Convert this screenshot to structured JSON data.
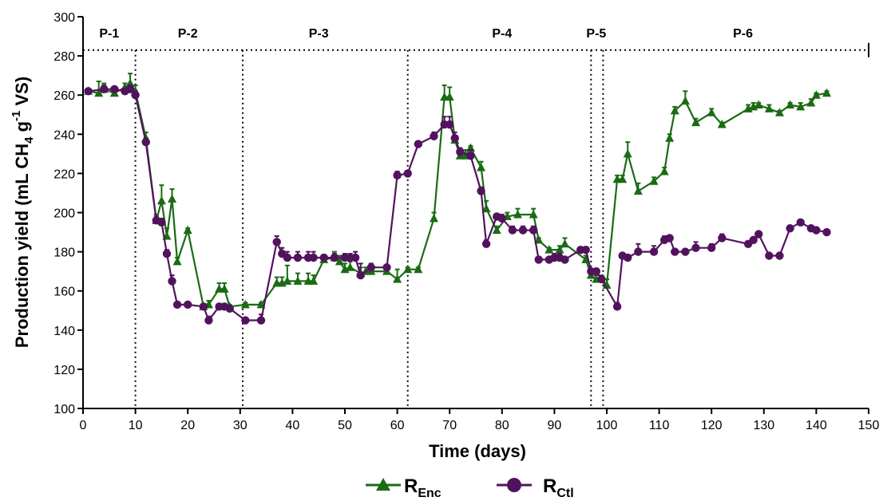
{
  "chart_data": {
    "type": "line",
    "title": "",
    "xlabel": "Time (days)",
    "ylabel": {
      "main": "Production yield (mL CH",
      "sub": "4",
      "mid": " g",
      "sup": "-1",
      "end": " VS)"
    },
    "xlim": [
      0,
      150
    ],
    "ylim": [
      100,
      300
    ],
    "xticks": [
      0,
      10,
      20,
      30,
      40,
      50,
      60,
      70,
      80,
      90,
      100,
      110,
      120,
      130,
      140,
      150
    ],
    "yticks": [
      100,
      120,
      140,
      160,
      180,
      200,
      220,
      240,
      260,
      280,
      300
    ],
    "grid": false,
    "legend_position": "bottom",
    "phases": {
      "boundaries": [
        10,
        30.5,
        62,
        97,
        99.3
      ],
      "line_y": 283,
      "labels": [
        {
          "text": "P-1",
          "x": 5
        },
        {
          "text": "P-2",
          "x": 20
        },
        {
          "text": "P-3",
          "x": 45
        },
        {
          "text": "P-4",
          "x": 80
        },
        {
          "text": "P-5",
          "x": 98
        },
        {
          "text": "P-6",
          "x": 126
        }
      ]
    },
    "series": [
      {
        "name": "R",
        "name_sub": "Enc",
        "color": "#1a6b14",
        "marker": "triangle",
        "x": [
          1,
          3,
          4,
          6,
          8,
          9,
          10,
          12,
          14,
          15,
          16,
          17,
          18,
          20,
          23,
          24,
          26,
          27,
          28,
          31,
          34,
          37,
          38,
          39,
          41,
          43,
          44,
          46,
          48,
          49,
          50,
          51,
          53,
          54,
          55,
          58,
          60,
          62,
          64,
          67,
          69,
          70,
          71,
          72,
          73,
          74,
          76,
          77,
          79,
          81,
          83,
          86,
          87,
          89,
          91,
          92,
          96,
          97,
          98,
          99,
          100,
          102,
          103,
          104,
          106,
          109,
          111,
          112,
          113,
          115,
          117,
          120,
          122,
          127,
          128,
          129,
          131,
          133,
          135,
          137,
          139,
          140,
          142
        ],
        "values": [
          262,
          261,
          263,
          261,
          264,
          266,
          262,
          238,
          196,
          206,
          188,
          207,
          175,
          191,
          152,
          153,
          161,
          161,
          152,
          153,
          153,
          164,
          164,
          165,
          165,
          165,
          165,
          176,
          177,
          175,
          171,
          172,
          169,
          170,
          170,
          170,
          166,
          171,
          171,
          197,
          259,
          259,
          237,
          229,
          229,
          233,
          223,
          202,
          191,
          198,
          199,
          199,
          186,
          181,
          181,
          184,
          176,
          168,
          166,
          166,
          163,
          217,
          217,
          230,
          211,
          216,
          221,
          238,
          252,
          257,
          246,
          251,
          245,
          253,
          254,
          255,
          253,
          251,
          255,
          254,
          256,
          260,
          261
        ],
        "errors": [
          1,
          6,
          3,
          1,
          2,
          5,
          3,
          3,
          3,
          8,
          4,
          5,
          2,
          1,
          1,
          2,
          3,
          3,
          1,
          1,
          1,
          3,
          3,
          8,
          4,
          4,
          3,
          2,
          3,
          3,
          3,
          3,
          3,
          2,
          2,
          1,
          5,
          1,
          1,
          3,
          6,
          5,
          2,
          3,
          3,
          1,
          3,
          4,
          2,
          2,
          3,
          3,
          1,
          1,
          2,
          3,
          2,
          2,
          2,
          2,
          3,
          2,
          2,
          6,
          4,
          2,
          2,
          2,
          2,
          5,
          2,
          2,
          1,
          2,
          2,
          1,
          2,
          1,
          1,
          2,
          2,
          1,
          1
        ]
      },
      {
        "name": "R",
        "name_sub": "Ctl",
        "color": "#52125e",
        "marker": "circle",
        "x": [
          1,
          4,
          6,
          8,
          9,
          10,
          12,
          14,
          15,
          16,
          17,
          18,
          20,
          23,
          24,
          26,
          27,
          28,
          31,
          34,
          37,
          38,
          39,
          41,
          43,
          44,
          46,
          48,
          50,
          51,
          52,
          53,
          55,
          58,
          60,
          62,
          64,
          67,
          69,
          70,
          71,
          72,
          74,
          76,
          77,
          79,
          80,
          82,
          84,
          86,
          87,
          89,
          90,
          91,
          92,
          95,
          96,
          97,
          98,
          99,
          102,
          103,
          104,
          106,
          109,
          111,
          112,
          113,
          115,
          117,
          120,
          122,
          127,
          128,
          129,
          131,
          133,
          135,
          137,
          139,
          140,
          142
        ],
        "values": [
          262,
          263,
          263,
          262,
          263,
          260,
          236,
          196,
          195,
          179,
          165,
          153,
          153,
          152,
          145,
          152,
          152,
          151,
          145,
          145,
          185,
          179,
          177,
          177,
          177,
          177,
          177,
          177,
          177,
          177,
          177,
          168,
          172,
          172,
          219,
          220,
          235,
          239,
          245,
          245,
          238,
          231,
          229,
          211,
          184,
          198,
          197,
          191,
          191,
          191,
          176,
          176,
          177,
          177,
          176,
          181,
          181,
          170,
          170,
          166,
          152,
          178,
          177,
          180,
          180,
          186,
          187,
          180,
          180,
          182,
          182,
          187,
          184,
          186,
          189,
          178,
          178,
          192,
          195,
          192,
          191,
          190
        ],
        "errors": [
          1,
          2,
          1,
          1,
          2,
          2,
          2,
          2,
          2,
          2,
          3,
          1,
          1,
          1,
          2,
          1,
          1,
          1,
          1,
          3,
          3,
          3,
          3,
          3,
          3,
          3,
          1,
          2,
          2,
          2,
          3,
          6,
          2,
          1,
          2,
          1,
          1,
          2,
          4,
          4,
          3,
          2,
          3,
          2,
          2,
          1,
          2,
          2,
          2,
          2,
          1,
          1,
          2,
          2,
          1,
          1,
          1,
          1,
          1,
          1,
          2,
          1,
          1,
          4,
          3,
          2,
          1,
          1,
          1,
          3,
          2,
          2,
          1,
          1,
          1,
          1,
          1,
          1,
          1,
          1,
          1,
          1
        ]
      }
    ]
  }
}
